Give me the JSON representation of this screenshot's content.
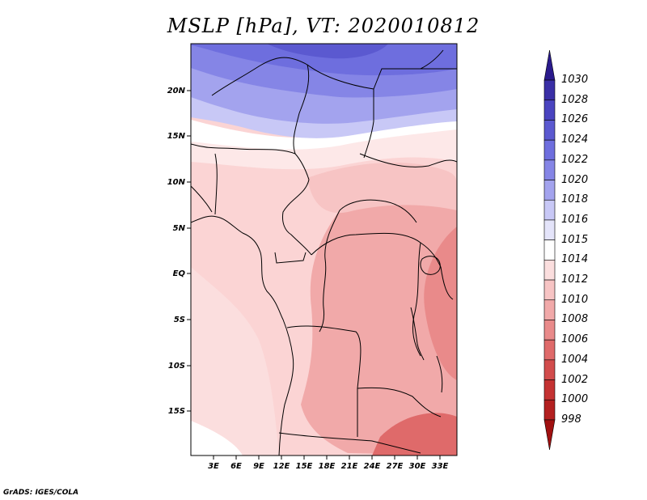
{
  "title": "MSLP [hPa], VT: 2020010812",
  "credit": "GrADS: IGES/COLA",
  "map": {
    "variable": "MSLP",
    "units": "hPa",
    "valid_time": "2020010812",
    "lat_ticks": [
      "20N",
      "15N",
      "10N",
      "5N",
      "EQ",
      "5S",
      "10S",
      "15S"
    ],
    "lon_ticks": [
      "3E",
      "6E",
      "9E",
      "12E",
      "15E",
      "18E",
      "21E",
      "24E",
      "27E",
      "30E",
      "33E"
    ]
  },
  "colorbar": {
    "levels": [
      "1030",
      "1028",
      "1026",
      "1024",
      "1022",
      "1020",
      "1018",
      "1016",
      "1015",
      "1014",
      "1012",
      "1010",
      "1008",
      "1006",
      "1004",
      "1002",
      "1000",
      "998"
    ],
    "colors": [
      "#2a1a8c",
      "#3a2fa6",
      "#4a44c0",
      "#5b59d0",
      "#6e6ede",
      "#8585e6",
      "#a3a3ee",
      "#c8c8f6",
      "#e4e4fa",
      "#ffffff",
      "#fbdede",
      "#f7c4c4",
      "#f1a9a9",
      "#e98a8a",
      "#df6a6a",
      "#d24c4c",
      "#c43232",
      "#b32020",
      "#a01010"
    ]
  }
}
